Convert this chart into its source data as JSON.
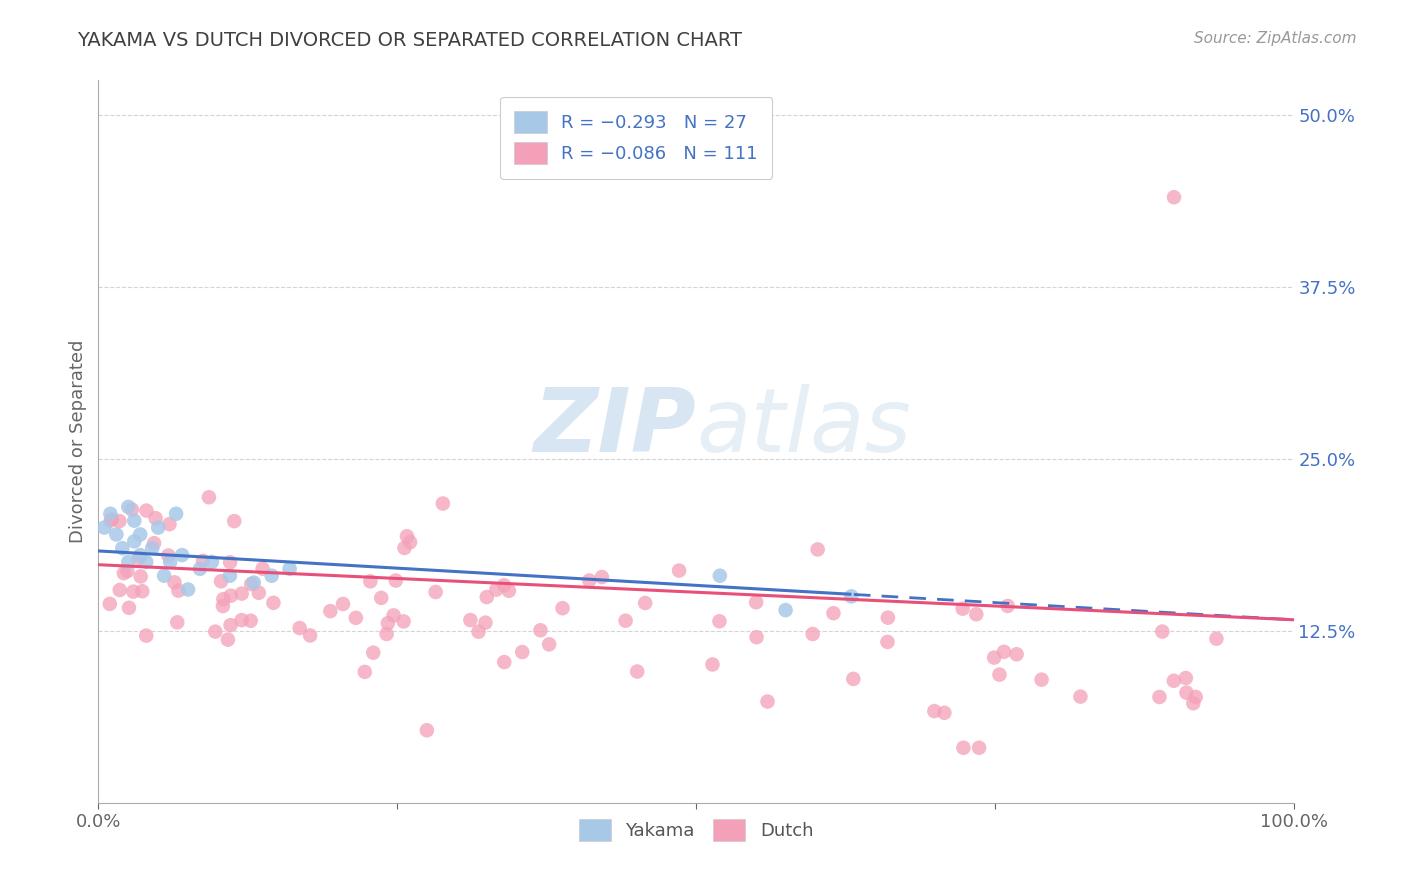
{
  "title": "YAKAMA VS DUTCH DIVORCED OR SEPARATED CORRELATION CHART",
  "source_text": "Source: ZipAtlas.com",
  "ylabel": "Divorced or Separated",
  "xlim": [
    0,
    1.0
  ],
  "ylim": [
    0,
    0.525
  ],
  "yticks": [
    0.125,
    0.25,
    0.375,
    0.5
  ],
  "ytick_labels": [
    "12.5%",
    "25.0%",
    "37.5%",
    "50.0%"
  ],
  "yakama_color": "#a8c8e8",
  "dutch_color": "#f4a0b8",
  "yakama_line_color": "#4472c4",
  "dutch_line_color": "#e8507a",
  "background_color": "#ffffff",
  "watermark_color": "#dce8f4",
  "grid_color": "#d0d0d0",
  "title_color": "#404040",
  "axis_label_color": "#4472c4",
  "bottom_label_color": "#555555",
  "legend_text_color": "#4472c4",
  "legend_label_color": "#333333"
}
